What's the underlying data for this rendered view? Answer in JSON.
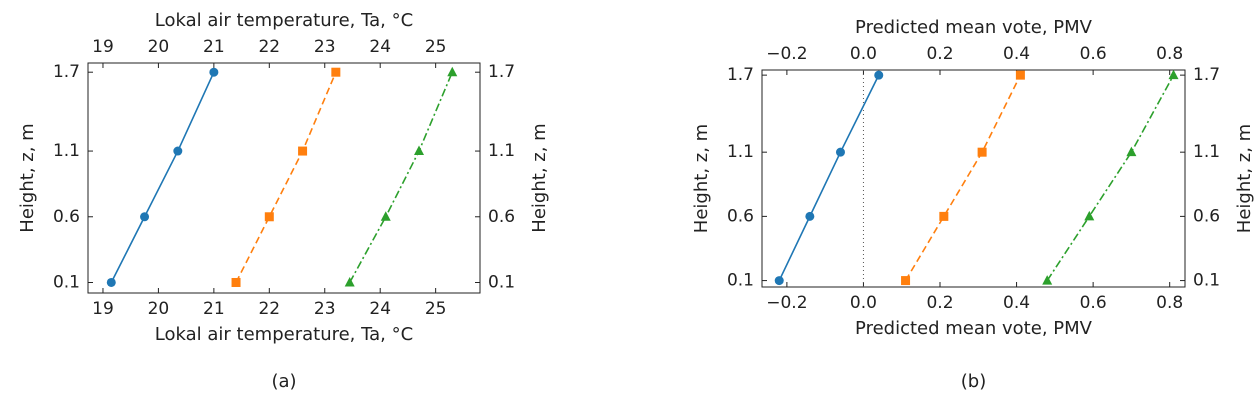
{
  "chart_data": [
    {
      "type": "line",
      "caption": "(a)",
      "xlabel": "Lokal air temperature, Ta, °C",
      "ylabel": "Height, z, m",
      "xlim": [
        18.73,
        25.8
      ],
      "xticks": [
        19,
        20,
        21,
        22,
        23,
        24,
        25
      ],
      "ylim": [
        0.02,
        1.77
      ],
      "yticks": [
        0.1,
        0.6,
        1.1,
        1.7
      ],
      "zero_line": false,
      "series": [
        {
          "color": "#1f77b4",
          "marker": "circle",
          "dash": "solid",
          "x": [
            19.15,
            19.75,
            20.35,
            21.0
          ],
          "values": [
            0.1,
            0.6,
            1.1,
            1.7
          ]
        },
        {
          "color": "#ff7f0e",
          "marker": "square",
          "dash": "dashed",
          "x": [
            21.4,
            22.0,
            22.6,
            23.2
          ],
          "values": [
            0.1,
            0.6,
            1.1,
            1.7
          ]
        },
        {
          "color": "#2ca02c",
          "marker": "triangle",
          "dash": "dashdot",
          "x": [
            23.45,
            24.1,
            24.7,
            25.3
          ],
          "values": [
            0.1,
            0.6,
            1.1,
            1.7
          ]
        }
      ]
    },
    {
      "type": "line",
      "caption": "(b)",
      "xlabel": "Predicted mean vote, PMV",
      "ylabel": "Height, z, m",
      "xlim": [
        -0.265,
        0.84
      ],
      "xticks": [
        {
          "value": -0.2,
          "label": "−0.2"
        },
        {
          "value": 0,
          "label": "0.0"
        },
        0.2,
        0.4,
        0.6,
        0.8
      ],
      "ylim": [
        0.05,
        1.74
      ],
      "yticks": [
        0.1,
        0.6,
        1.1,
        1.7
      ],
      "zero_line": true,
      "series": [
        {
          "color": "#1f77b4",
          "marker": "circle",
          "dash": "solid",
          "x": [
            -0.22,
            -0.14,
            -0.06,
            0.04
          ],
          "values": [
            0.1,
            0.6,
            1.1,
            1.7
          ]
        },
        {
          "color": "#ff7f0e",
          "marker": "square",
          "dash": "dashed",
          "x": [
            0.11,
            0.21,
            0.31,
            0.41
          ],
          "values": [
            0.1,
            0.6,
            1.1,
            1.7
          ]
        },
        {
          "color": "#2ca02c",
          "marker": "triangle",
          "dash": "dashdot",
          "x": [
            0.48,
            0.59,
            0.7,
            0.81
          ],
          "values": [
            0.1,
            0.6,
            1.1,
            1.7
          ]
        }
      ]
    }
  ]
}
